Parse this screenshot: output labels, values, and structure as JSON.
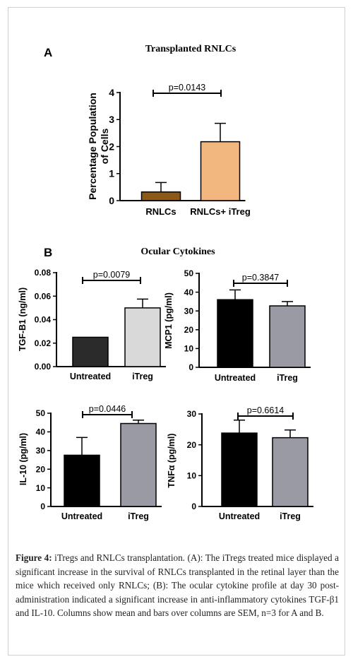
{
  "panels": [
    {
      "letter": "A",
      "title": "Transplanted RNLCs"
    },
    {
      "letter": "B",
      "title": "Ocular Cytokines"
    }
  ],
  "colors": {
    "rnlcs": "#8b5a19",
    "rnlcs_itreg": "#f2b67f",
    "untreated_tgf": "#2b2b2b",
    "itreg_tgf": "#d9d9d9",
    "untreated": "#000000",
    "itreg": "#999aa3",
    "axis": "#000000"
  },
  "chart_data": [
    {
      "type": "bar",
      "ylabel": "Percentage Population of Cells",
      "ylabel_lines": [
        "Percentage Population",
        "of Cells"
      ],
      "categories": [
        "RNLCs",
        "RNLCs+ iTreg"
      ],
      "values": [
        0.32,
        2.18
      ],
      "errors": [
        0.35,
        0.68
      ],
      "ylim": [
        0,
        4
      ],
      "yticks": [
        "0",
        "1",
        "2",
        "3",
        "4"
      ],
      "annotation": "p=0.0143"
    },
    {
      "type": "bar",
      "ylabel": "TGF-B1 (ng/ml)",
      "categories": [
        "Untreated",
        "iTreg"
      ],
      "values": [
        0.025,
        0.05
      ],
      "errors": [
        0.0,
        0.0075
      ],
      "ylim": [
        0,
        0.08
      ],
      "yticks": [
        "0.00",
        "0.02",
        "0.04",
        "0.06",
        "0.08"
      ],
      "annotation": "p=0.0079"
    },
    {
      "type": "bar",
      "ylabel": "MCP1 (pg/ml)",
      "categories": [
        "Untreated",
        "iTreg"
      ],
      "values": [
        36,
        32.7
      ],
      "errors": [
        5.2,
        2.3
      ],
      "ylim": [
        0,
        50
      ],
      "yticks": [
        "0",
        "10",
        "20",
        "30",
        "40",
        "50"
      ],
      "annotation": "p=0.3847"
    },
    {
      "type": "bar",
      "ylabel": "IL-10 (pg/ml)",
      "categories": [
        "Untreated",
        "iTreg"
      ],
      "values": [
        27.5,
        44.5
      ],
      "errors": [
        9.5,
        1.8
      ],
      "ylim": [
        0,
        50
      ],
      "yticks": [
        "0",
        "10",
        "20",
        "30",
        "40",
        "50"
      ],
      "annotation": "p=0.0446"
    },
    {
      "type": "bar",
      "ylabel": "TNFα (pg/ml)",
      "categories": [
        "Untreated",
        "iTreg"
      ],
      "values": [
        23.8,
        22.3
      ],
      "errors": [
        4.2,
        2.5
      ],
      "ylim": [
        0,
        30
      ],
      "yticks": [
        "0",
        "10",
        "20",
        "30"
      ],
      "annotation": "p=0.6614"
    }
  ],
  "caption": {
    "label": "Figure 4:",
    "text": "iTregs and RNLCs transplantation. (A): The iTregs treated mice displayed a significant increase in the survival of RNLCs transplanted in the retinal layer than the mice which received only RNLCs; (B): The ocular cytokine profile at day 30 post-administration indicated a significant increase in anti-inflammatory cytokines TGF-β1 and IL-10. Columns show mean and bars over columns are SEM, n=3 for A and B."
  }
}
